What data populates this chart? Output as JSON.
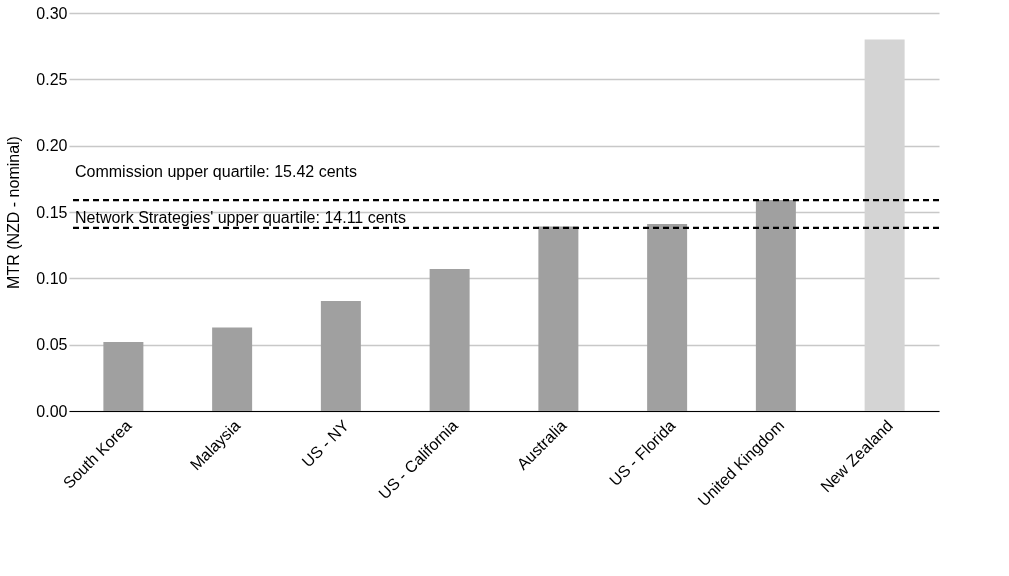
{
  "chart_data": {
    "type": "bar",
    "ylabel": "MTR (NZD - nominal)",
    "categories": [
      "South Korea",
      "Malaysia",
      "US - NY",
      "US - California",
      "Australia",
      "US - Florida",
      "United Kingdom",
      "New Zealand"
    ],
    "values": [
      0.052,
      0.063,
      0.083,
      0.107,
      0.139,
      0.141,
      0.159,
      0.28
    ],
    "colors": [
      "#a0a0a0",
      "#a0a0a0",
      "#a0a0a0",
      "#a0a0a0",
      "#a0a0a0",
      "#a0a0a0",
      "#a0a0a0",
      "#d4d4d4"
    ],
    "ylim": [
      0,
      0.3
    ],
    "yticks": [
      {
        "value": 0,
        "label": "0.00"
      },
      {
        "value": 0.05,
        "label": "0.05"
      },
      {
        "value": 0.1,
        "label": "0.10"
      },
      {
        "value": 0.15,
        "label": "0.15"
      },
      {
        "value": 0.2,
        "label": "0.20"
      },
      {
        "value": 0.25,
        "label": "0.25"
      },
      {
        "value": 0.3,
        "label": "0.30"
      }
    ],
    "ref_lines": [
      {
        "axis": "y",
        "value": 0.159,
        "color": "#000000",
        "line_style": "dashed"
      },
      {
        "axis": "y",
        "value": 0.138,
        "color": "#000000",
        "line_style": "dashed"
      }
    ],
    "annotations": [
      "Commission upper quartile: 15.42 cents",
      "Network Strategies' upper quartile: 14.11 cents"
    ],
    "grid": "y"
  }
}
